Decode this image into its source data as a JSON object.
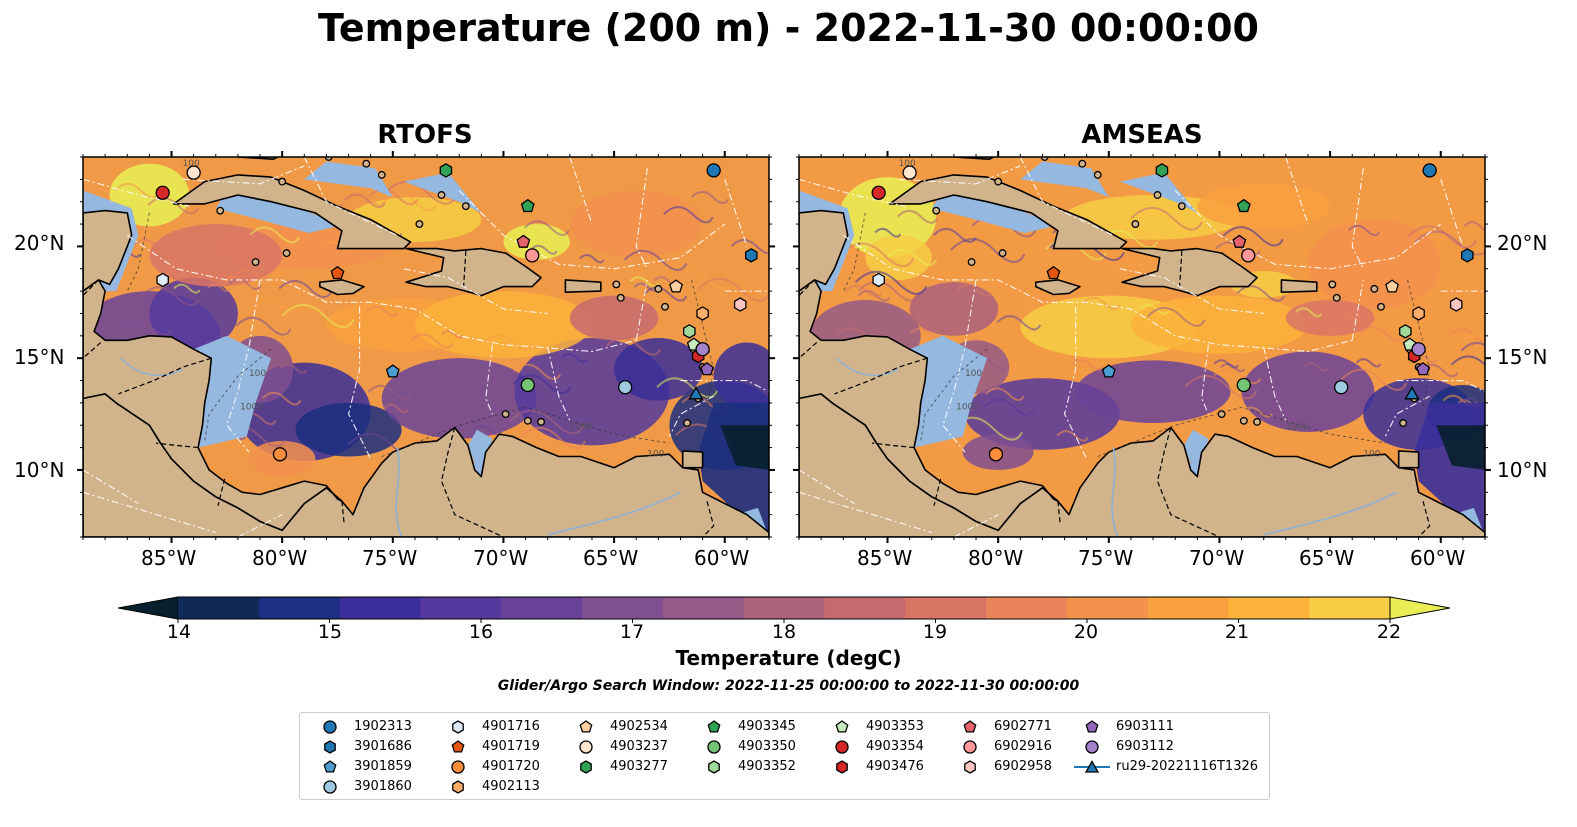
{
  "title": "Temperature (200 m) - 2022-11-30 00:00:00",
  "panels": [
    {
      "title": "RTOFS"
    },
    {
      "title": "AMSEAS"
    }
  ],
  "map": {
    "lon_range": [
      -89,
      -58
    ],
    "lat_range": [
      7,
      24
    ],
    "lon_ticks": [
      "85°W",
      "80°W",
      "75°W",
      "70°W",
      "65°W",
      "60°W"
    ],
    "lat_ticks": [
      "20°N",
      "15°N",
      "10°N"
    ],
    "colors": {
      "land": "#d1b48c",
      "shallow_water": "#94b8e0",
      "coastline": "#000000",
      "eez_lines": "#ffffff",
      "contour_labels": "#555555"
    },
    "contour_labels": [
      "1000",
      "100"
    ]
  },
  "colorbar": {
    "label": "Temperature (degC)",
    "min": 14,
    "max": 22,
    "ticks": [
      "14",
      "15",
      "16",
      "17",
      "18",
      "19",
      "20",
      "21",
      "22"
    ],
    "colors": [
      "#08202e",
      "#0f2a57",
      "#1c2f80",
      "#3a2f9a",
      "#55399e",
      "#6a4399",
      "#7f4f8f",
      "#955a86",
      "#ac627c",
      "#c56b70",
      "#d97565",
      "#e9835a",
      "#f3914d",
      "#f9a040",
      "#fcb23b",
      "#f6cd44",
      "#e8ee54"
    ]
  },
  "search_window": "Glider/Argo Search Window: 2022-11-25 00:00:00 to 2022-11-30 00:00:00",
  "legend": [
    {
      "label": "1902313",
      "marker": "circle",
      "color": "#1f77b4"
    },
    {
      "label": "3901686",
      "marker": "hexagon",
      "color": "#1f77b4"
    },
    {
      "label": "3901859",
      "marker": "pentagon",
      "color": "#4a9fd0"
    },
    {
      "label": "3901860",
      "marker": "circle",
      "color": "#9ecae1"
    },
    {
      "label": "4901716",
      "marker": "hexagon",
      "color": "#deebf7"
    },
    {
      "label": "4901719",
      "marker": "pentagon",
      "color": "#e6550d"
    },
    {
      "label": "4901720",
      "marker": "circle",
      "color": "#fd8d3c"
    },
    {
      "label": "4902113",
      "marker": "hexagon",
      "color": "#fdae6b"
    },
    {
      "label": "4902534",
      "marker": "pentagon",
      "color": "#fdd0a2"
    },
    {
      "label": "4903237",
      "marker": "circle",
      "color": "#fee6ce"
    },
    {
      "label": "4903277",
      "marker": "hexagon",
      "color": "#31a354"
    },
    {
      "label": "4903345",
      "marker": "pentagon",
      "color": "#31a354"
    },
    {
      "label": "4903350",
      "marker": "circle",
      "color": "#74c476"
    },
    {
      "label": "4903352",
      "marker": "hexagon",
      "color": "#a1d99b"
    },
    {
      "label": "4903353",
      "marker": "pentagon",
      "color": "#c7e9c0"
    },
    {
      "label": "4903354",
      "marker": "circle",
      "color": "#d62728"
    },
    {
      "label": "4903476",
      "marker": "hexagon",
      "color": "#d62728"
    },
    {
      "label": "6902771",
      "marker": "pentagon",
      "color": "#e7636b"
    },
    {
      "label": "6902916",
      "marker": "circle",
      "color": "#ff9896"
    },
    {
      "label": "6902958",
      "marker": "hexagon",
      "color": "#fcc5c0"
    },
    {
      "label": "6903111",
      "marker": "pentagon",
      "color": "#9467bd"
    },
    {
      "label": "6903112",
      "marker": "circle",
      "color": "#a383cc"
    },
    {
      "label": "ru29-20221116T1326",
      "marker": "triangle-line",
      "color": "#1f77b4"
    }
  ],
  "floats": [
    {
      "id": "1902313",
      "lon": -60.5,
      "lat": 23.4
    },
    {
      "id": "3901686",
      "lon": -58.8,
      "lat": 19.6
    },
    {
      "id": "3901859",
      "lon": -75.0,
      "lat": 14.4
    },
    {
      "id": "3901860",
      "lon": -64.5,
      "lat": 13.7
    },
    {
      "id": "4901716",
      "lon": -85.4,
      "lat": 18.5
    },
    {
      "id": "4901719",
      "lon": -77.5,
      "lat": 18.8
    },
    {
      "id": "4901720",
      "lon": -80.1,
      "lat": 10.7
    },
    {
      "id": "4902113",
      "lon": -61.0,
      "lat": 17.0
    },
    {
      "id": "4902534",
      "lon": -62.2,
      "lat": 18.2
    },
    {
      "id": "4903237",
      "lon": -84.0,
      "lat": 23.3
    },
    {
      "id": "4903277",
      "lon": -72.6,
      "lat": 23.4
    },
    {
      "id": "4903345",
      "lon": -68.9,
      "lat": 21.8
    },
    {
      "id": "4903350",
      "lon": -68.9,
      "lat": 13.8
    },
    {
      "id": "4903352",
      "lon": -61.6,
      "lat": 16.2
    },
    {
      "id": "4903353",
      "lon": -61.4,
      "lat": 15.6
    },
    {
      "id": "4903354",
      "lon": -85.4,
      "lat": 22.4
    },
    {
      "id": "4903476",
      "lon": -61.2,
      "lat": 15.1
    },
    {
      "id": "6902771",
      "lon": -69.1,
      "lat": 20.2
    },
    {
      "id": "6902916",
      "lon": -68.7,
      "lat": 19.6
    },
    {
      "id": "6902958",
      "lon": -59.3,
      "lat": 17.4
    },
    {
      "id": "6903111",
      "lon": -60.8,
      "lat": 14.5
    },
    {
      "id": "6903112",
      "lon": -61.0,
      "lat": 15.4
    },
    {
      "id": "ru29-20221116T1326",
      "lon": -61.3,
      "lat": 13.4
    }
  ]
}
